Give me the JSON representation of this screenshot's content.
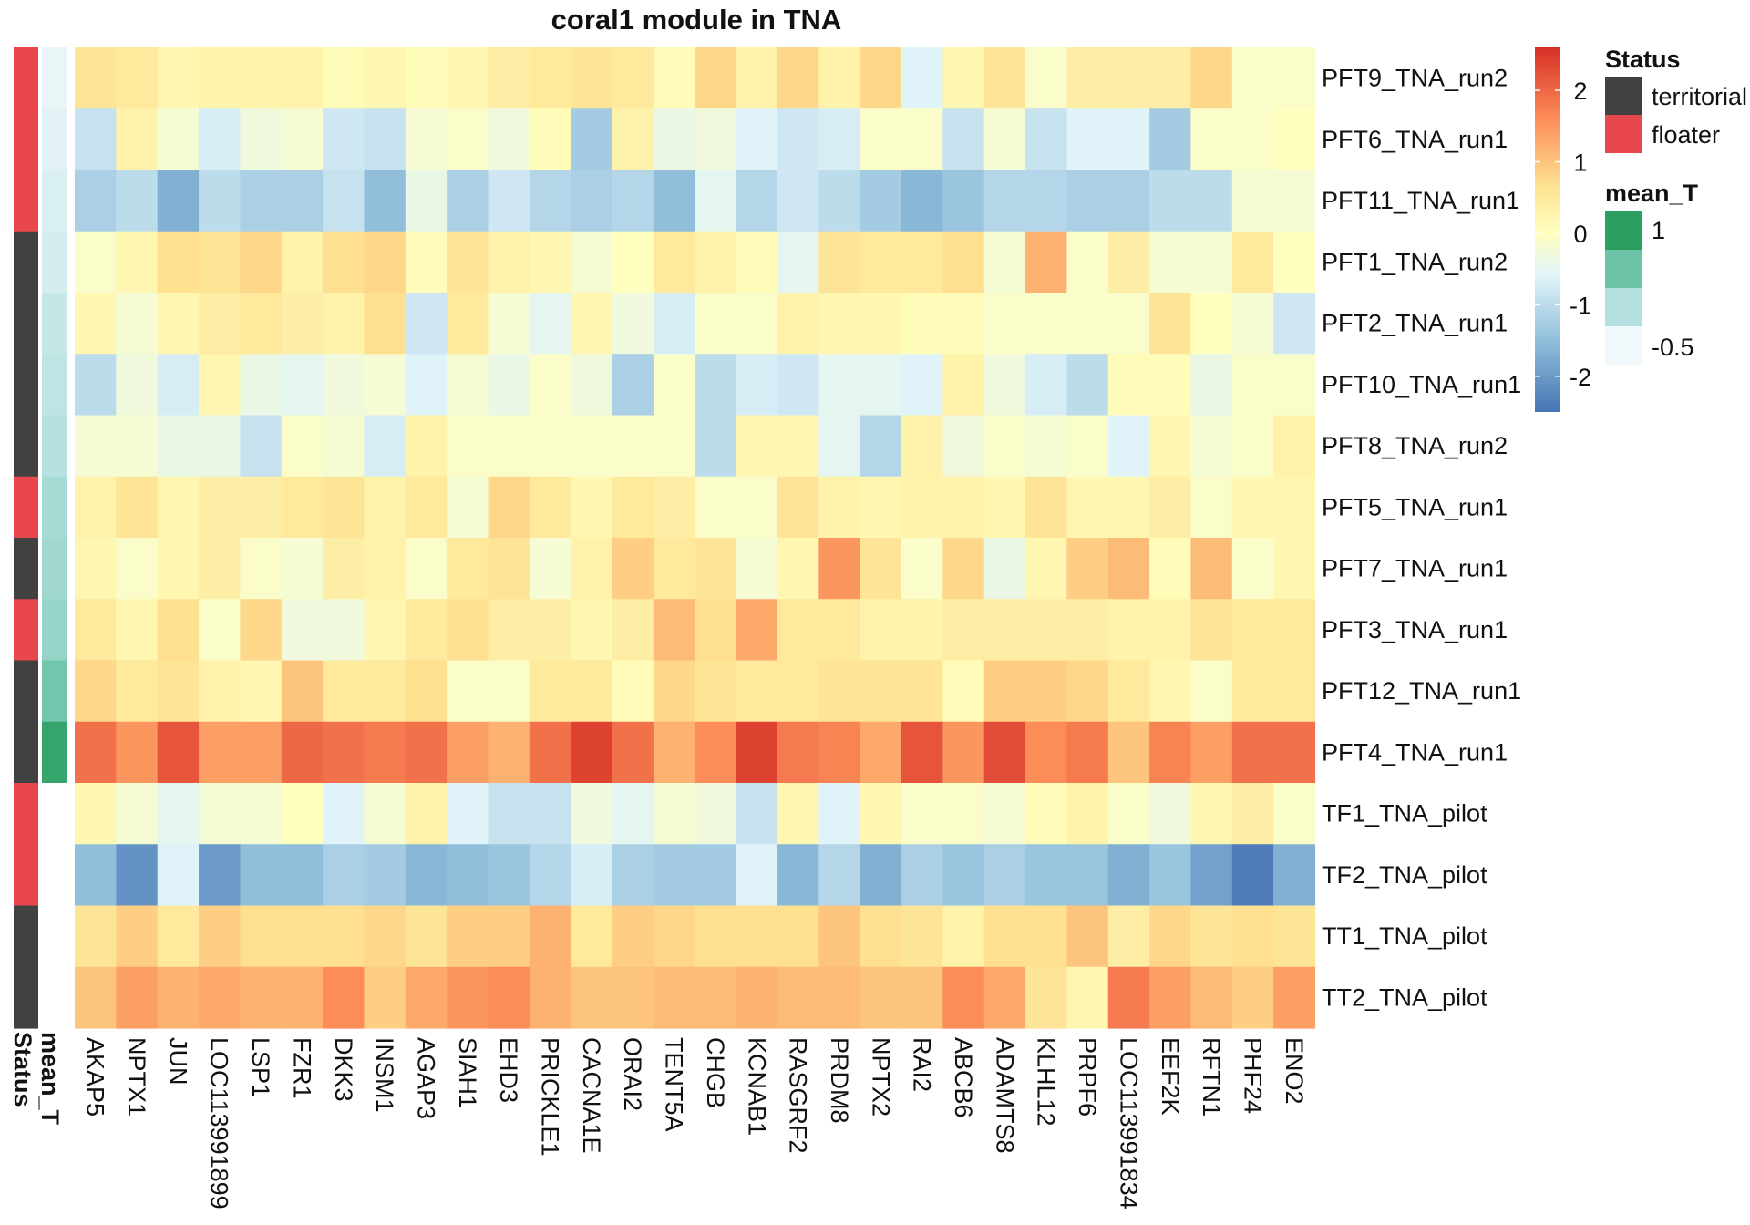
{
  "chart_data": {
    "type": "heatmap",
    "title": "coral1 module in TNA",
    "rows": [
      "PFT9_TNA_run2",
      "PFT6_TNA_run1",
      "PFT11_TNA_run1",
      "PFT1_TNA_run2",
      "PFT2_TNA_run1",
      "PFT10_TNA_run1",
      "PFT8_TNA_run2",
      "PFT5_TNA_run1",
      "PFT7_TNA_run1",
      "PFT3_TNA_run1",
      "PFT12_TNA_run1",
      "PFT4_TNA_run1",
      "TF1_TNA_pilot",
      "TF2_TNA_pilot",
      "TT1_TNA_pilot",
      "TT2_TNA_pilot"
    ],
    "columns": [
      "AKAP5",
      "NPTX1",
      "JUN",
      "LOC113991899",
      "LSP1",
      "FZR1",
      "DKK3",
      "INSM1",
      "AGAP3",
      "SIAH1",
      "EHD3",
      "PRICKLE1",
      "CACNA1E",
      "ORAI2",
      "TENT5A",
      "CHGB",
      "KCNAB1",
      "RASGRF2",
      "PRDM8",
      "NPTX2",
      "RAI2",
      "ABCB6",
      "ADAMTS8",
      "KLHL12",
      "PRPF6",
      "LOC113991834",
      "EEF2K",
      "RFTN1",
      "PHF24",
      "ENO2"
    ],
    "values": [
      [
        0.6,
        0.5,
        0.2,
        0.3,
        0.3,
        0.3,
        0.1,
        0.2,
        0.1,
        0.2,
        0.4,
        0.5,
        0.6,
        0.5,
        0.1,
        0.8,
        0.3,
        0.8,
        0.3,
        0.8,
        -0.6,
        0.2,
        0.6,
        -0.1,
        0.4,
        0.4,
        0.4,
        0.8,
        -0.1,
        -0.1
      ],
      [
        -0.9,
        0.3,
        -0.2,
        -0.7,
        -0.3,
        -0.2,
        -0.8,
        -0.9,
        -0.2,
        -0.1,
        -0.3,
        0.1,
        -1.3,
        0.3,
        -0.4,
        -0.3,
        -0.6,
        -0.8,
        -0.7,
        -0.1,
        -0.1,
        -0.9,
        -0.2,
        -0.9,
        -0.6,
        -0.6,
        -1.3,
        -0.1,
        -0.1,
        0.0
      ],
      [
        -1.2,
        -1.0,
        -1.7,
        -1.0,
        -1.2,
        -1.2,
        -0.9,
        -1.5,
        -0.4,
        -1.2,
        -0.8,
        -1.1,
        -1.2,
        -1.1,
        -1.5,
        -0.5,
        -1.1,
        -0.8,
        -1.0,
        -1.3,
        -1.6,
        -1.4,
        -1.1,
        -1.1,
        -1.2,
        -1.2,
        -1.0,
        -1.0,
        -0.2,
        -0.2
      ],
      [
        -0.1,
        0.2,
        0.7,
        0.6,
        0.8,
        0.3,
        0.7,
        0.8,
        0.1,
        0.6,
        0.3,
        0.2,
        -0.2,
        0.0,
        0.5,
        0.3,
        0.1,
        -0.5,
        0.6,
        0.5,
        0.5,
        0.7,
        -0.2,
        1.2,
        -0.1,
        0.4,
        -0.2,
        -0.2,
        0.5,
        0.0
      ],
      [
        0.2,
        -0.2,
        0.2,
        0.4,
        0.5,
        0.4,
        0.3,
        0.7,
        -0.8,
        0.5,
        -0.2,
        -0.5,
        0.2,
        -0.3,
        -0.7,
        -0.1,
        -0.1,
        0.3,
        0.2,
        0.2,
        0.1,
        0.1,
        -0.1,
        -0.1,
        -0.1,
        -0.1,
        0.6,
        0.0,
        -0.2,
        -0.8
      ],
      [
        -1.0,
        -0.3,
        -0.7,
        0.2,
        -0.4,
        -0.5,
        -0.3,
        -0.2,
        -0.6,
        -0.2,
        -0.4,
        -0.1,
        -0.3,
        -1.2,
        -0.1,
        -1.0,
        -0.7,
        -0.8,
        -0.5,
        -0.5,
        -0.6,
        0.3,
        -0.3,
        -0.7,
        -1.0,
        0.1,
        0.1,
        -0.4,
        -0.1,
        -0.1
      ],
      [
        -0.2,
        -0.2,
        -0.4,
        -0.4,
        -0.9,
        -0.1,
        -0.2,
        -0.7,
        0.3,
        -0.1,
        -0.1,
        -0.1,
        -0.1,
        -0.1,
        -0.1,
        -1.0,
        0.2,
        0.2,
        -0.5,
        -1.1,
        0.3,
        -0.3,
        -0.1,
        -0.2,
        -0.1,
        -0.6,
        0.2,
        -0.2,
        -0.1,
        0.3
      ],
      [
        0.3,
        0.6,
        0.2,
        0.4,
        0.4,
        0.5,
        0.6,
        0.3,
        0.5,
        -0.2,
        0.8,
        0.5,
        0.2,
        0.5,
        0.4,
        -0.1,
        -0.1,
        0.6,
        0.3,
        0.2,
        0.3,
        0.3,
        0.2,
        0.6,
        0.2,
        0.2,
        0.4,
        -0.1,
        0.2,
        0.2
      ],
      [
        0.2,
        -0.1,
        0.2,
        0.4,
        -0.1,
        -0.2,
        0.4,
        0.3,
        -0.1,
        0.5,
        0.6,
        -0.2,
        0.3,
        0.9,
        0.5,
        0.6,
        -0.2,
        0.2,
        1.5,
        0.6,
        -0.1,
        0.8,
        -0.4,
        0.2,
        0.9,
        1.1,
        0.1,
        1.1,
        -0.1,
        0.2
      ],
      [
        0.5,
        0.2,
        0.7,
        -0.1,
        0.8,
        -0.3,
        -0.3,
        0.2,
        0.5,
        0.7,
        0.4,
        0.4,
        0.2,
        0.4,
        1.1,
        0.7,
        1.3,
        0.5,
        0.5,
        0.3,
        0.3,
        0.4,
        0.4,
        0.4,
        0.4,
        0.3,
        0.3,
        0.6,
        0.5,
        0.5
      ],
      [
        0.8,
        0.5,
        0.6,
        0.3,
        0.2,
        1.0,
        0.5,
        0.5,
        0.7,
        -0.1,
        -0.1,
        0.5,
        0.5,
        0.1,
        0.8,
        0.6,
        0.5,
        0.5,
        0.6,
        0.6,
        0.6,
        0.1,
        0.9,
        0.9,
        0.8,
        0.5,
        0.2,
        -0.1,
        0.5,
        0.5
      ],
      [
        1.9,
        1.5,
        2.2,
        1.4,
        1.4,
        2.0,
        1.9,
        1.8,
        1.9,
        1.4,
        1.2,
        1.9,
        2.4,
        1.9,
        1.2,
        1.6,
        2.4,
        1.8,
        1.7,
        1.3,
        2.2,
        1.5,
        2.3,
        1.6,
        1.8,
        1.0,
        1.7,
        1.4,
        1.9,
        1.9
      ],
      [
        0.2,
        -0.2,
        -0.5,
        -0.2,
        -0.2,
        0.0,
        -0.6,
        -0.2,
        0.3,
        -0.6,
        -0.9,
        -0.9,
        -0.3,
        -0.5,
        -0.2,
        -0.3,
        -0.9,
        0.2,
        -0.6,
        0.2,
        -0.1,
        -0.1,
        -0.2,
        0.1,
        0.3,
        -0.1,
        -0.3,
        0.2,
        0.4,
        -0.1
      ],
      [
        -1.5,
        -2.1,
        -0.6,
        -2.0,
        -1.5,
        -1.5,
        -1.2,
        -1.3,
        -1.6,
        -1.5,
        -1.4,
        -1.1,
        -0.7,
        -1.2,
        -1.3,
        -1.3,
        -0.6,
        -1.6,
        -1.1,
        -1.7,
        -1.2,
        -1.4,
        -1.2,
        -1.4,
        -1.4,
        -1.7,
        -1.4,
        -1.9,
        -2.4,
        -1.7
      ],
      [
        0.6,
        0.9,
        0.5,
        0.9,
        0.7,
        0.7,
        0.7,
        0.8,
        0.6,
        0.9,
        0.9,
        1.2,
        0.5,
        0.9,
        0.8,
        0.7,
        0.7,
        0.7,
        1.0,
        0.7,
        0.6,
        0.3,
        0.7,
        0.7,
        1.0,
        0.4,
        0.8,
        0.6,
        0.7,
        0.6
      ],
      [
        1.0,
        1.4,
        1.2,
        1.3,
        1.2,
        1.2,
        1.6,
        0.9,
        1.3,
        1.5,
        1.6,
        1.2,
        1.0,
        1.0,
        1.1,
        1.1,
        1.2,
        1.1,
        1.1,
        1.0,
        1.0,
        1.6,
        1.3,
        0.6,
        0.2,
        1.8,
        1.4,
        1.1,
        0.9,
        1.4
      ]
    ],
    "color_scale": {
      "colors": [
        "#4575b4",
        "#91bfdb",
        "#e0f3f8",
        "#ffffbf",
        "#fee090",
        "#fc8d59",
        "#d73027"
      ],
      "stops": [
        -2.5,
        -1.5,
        -0.6,
        0.0,
        0.7,
        1.6,
        2.6
      ],
      "range": [
        -2.5,
        2.6
      ],
      "ticks": [
        "2",
        "1",
        "0",
        "-1",
        "-2"
      ],
      "tick_values": [
        2,
        1,
        0,
        -1,
        -2
      ]
    },
    "annotations": {
      "status": {
        "title": "Status",
        "label": "Status",
        "values": [
          "floater",
          "floater",
          "floater",
          "territorial",
          "territorial",
          "territorial",
          "territorial",
          "floater",
          "territorial",
          "floater",
          "territorial",
          "territorial",
          "floater",
          "floater",
          "territorial",
          "territorial"
        ],
        "legend": [
          {
            "label": "territorial",
            "color": "#414141"
          },
          {
            "label": "floater",
            "color": "#e8474e"
          }
        ]
      },
      "mean_T": {
        "title": "mean_T",
        "label": "mean_T",
        "values": [
          -0.62,
          -0.55,
          -0.45,
          -0.42,
          -0.25,
          -0.18,
          -0.1,
          0.05,
          0.1,
          0.2,
          0.5,
          1.1,
          null,
          null,
          null,
          null
        ],
        "colors": [
          "#2c9f5f",
          "#6cc3a8",
          "#b3e0de",
          "#f1f8fb"
        ],
        "ticks": [
          "1",
          "-0.5"
        ]
      }
    }
  }
}
